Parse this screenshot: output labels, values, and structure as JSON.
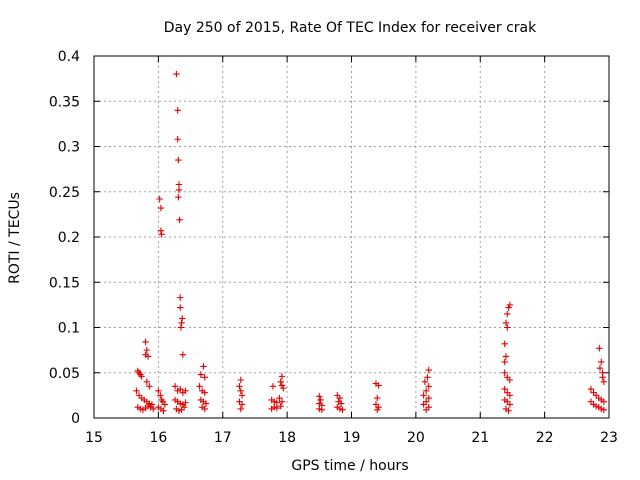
{
  "chart_data": {
    "type": "scatter",
    "title": "Day 250 of 2015, Rate Of TEC Index for receiver crak",
    "xlabel": "GPS time / hours",
    "ylabel": "ROTI / TECUs",
    "xlim": [
      15,
      23
    ],
    "ylim": [
      0,
      0.4
    ],
    "grid": true,
    "xticks": [
      "15",
      "16",
      "17",
      "18",
      "19",
      "20",
      "21",
      "22",
      "23"
    ],
    "yticks": [
      "0",
      "0.05",
      "0.1",
      "0.15",
      "0.2",
      "0.25",
      "0.3",
      "0.35",
      "0.4"
    ],
    "marker_color": "#e00000",
    "marker": "+",
    "series": [
      {
        "name": "ROTI",
        "points": [
          [
            15.68,
            0.052
          ],
          [
            15.7,
            0.05
          ],
          [
            15.72,
            0.048
          ],
          [
            15.74,
            0.046
          ],
          [
            15.66,
            0.03
          ],
          [
            15.7,
            0.025
          ],
          [
            15.74,
            0.022
          ],
          [
            15.78,
            0.02
          ],
          [
            15.82,
            0.018
          ],
          [
            15.86,
            0.016
          ],
          [
            15.9,
            0.015
          ],
          [
            15.68,
            0.012
          ],
          [
            15.72,
            0.01
          ],
          [
            15.76,
            0.009
          ],
          [
            15.8,
            0.011
          ],
          [
            15.84,
            0.013
          ],
          [
            15.88,
            0.012
          ],
          [
            15.92,
            0.01
          ],
          [
            15.8,
            0.084
          ],
          [
            15.82,
            0.075
          ],
          [
            15.8,
            0.07
          ],
          [
            15.84,
            0.068
          ],
          [
            15.82,
            0.04
          ],
          [
            15.86,
            0.035
          ],
          [
            16.02,
            0.242
          ],
          [
            16.04,
            0.232
          ],
          [
            16.04,
            0.207
          ],
          [
            16.05,
            0.203
          ],
          [
            16.0,
            0.03
          ],
          [
            16.03,
            0.025
          ],
          [
            16.05,
            0.02
          ],
          [
            16.07,
            0.018
          ],
          [
            16.0,
            0.012
          ],
          [
            16.04,
            0.01
          ],
          [
            16.08,
            0.008
          ],
          [
            16.1,
            0.015
          ],
          [
            16.28,
            0.38
          ],
          [
            16.3,
            0.34
          ],
          [
            16.3,
            0.308
          ],
          [
            16.31,
            0.285
          ],
          [
            16.32,
            0.258
          ],
          [
            16.32,
            0.252
          ],
          [
            16.31,
            0.244
          ],
          [
            16.33,
            0.219
          ],
          [
            16.34,
            0.133
          ],
          [
            16.34,
            0.122
          ],
          [
            16.37,
            0.11
          ],
          [
            16.36,
            0.105
          ],
          [
            16.35,
            0.1
          ],
          [
            16.38,
            0.07
          ],
          [
            16.26,
            0.035
          ],
          [
            16.3,
            0.03
          ],
          [
            16.34,
            0.032
          ],
          [
            16.38,
            0.028
          ],
          [
            16.42,
            0.03
          ],
          [
            16.26,
            0.02
          ],
          [
            16.3,
            0.018
          ],
          [
            16.34,
            0.016
          ],
          [
            16.38,
            0.015
          ],
          [
            16.42,
            0.017
          ],
          [
            16.28,
            0.01
          ],
          [
            16.32,
            0.008
          ],
          [
            16.36,
            0.009
          ],
          [
            16.4,
            0.012
          ],
          [
            16.7,
            0.057
          ],
          [
            16.66,
            0.048
          ],
          [
            16.72,
            0.045
          ],
          [
            16.64,
            0.035
          ],
          [
            16.68,
            0.03
          ],
          [
            16.72,
            0.028
          ],
          [
            16.66,
            0.02
          ],
          [
            16.7,
            0.018
          ],
          [
            16.74,
            0.016
          ],
          [
            16.68,
            0.012
          ],
          [
            16.72,
            0.01
          ],
          [
            17.28,
            0.042
          ],
          [
            17.26,
            0.035
          ],
          [
            17.28,
            0.03
          ],
          [
            17.3,
            0.025
          ],
          [
            17.26,
            0.018
          ],
          [
            17.3,
            0.015
          ],
          [
            17.28,
            0.01
          ],
          [
            17.78,
            0.035
          ],
          [
            17.76,
            0.02
          ],
          [
            17.8,
            0.018
          ],
          [
            17.84,
            0.017
          ],
          [
            17.8,
            0.012
          ],
          [
            17.76,
            0.01
          ],
          [
            17.84,
            0.011
          ],
          [
            17.92,
            0.046
          ],
          [
            17.9,
            0.04
          ],
          [
            17.92,
            0.036
          ],
          [
            17.94,
            0.033
          ],
          [
            17.88,
            0.022
          ],
          [
            17.92,
            0.018
          ],
          [
            17.9,
            0.013
          ],
          [
            18.5,
            0.024
          ],
          [
            18.52,
            0.02
          ],
          [
            18.5,
            0.016
          ],
          [
            18.54,
            0.014
          ],
          [
            18.5,
            0.01
          ],
          [
            18.54,
            0.009
          ],
          [
            18.78,
            0.025
          ],
          [
            18.82,
            0.022
          ],
          [
            18.8,
            0.018
          ],
          [
            18.84,
            0.016
          ],
          [
            18.78,
            0.012
          ],
          [
            18.82,
            0.01
          ],
          [
            18.86,
            0.009
          ],
          [
            19.38,
            0.038
          ],
          [
            19.42,
            0.036
          ],
          [
            19.4,
            0.022
          ],
          [
            19.38,
            0.015
          ],
          [
            19.42,
            0.012
          ],
          [
            19.4,
            0.009
          ],
          [
            20.2,
            0.053
          ],
          [
            20.18,
            0.045
          ],
          [
            20.14,
            0.04
          ],
          [
            20.2,
            0.035
          ],
          [
            20.16,
            0.03
          ],
          [
            20.12,
            0.025
          ],
          [
            20.2,
            0.022
          ],
          [
            20.16,
            0.018
          ],
          [
            20.12,
            0.015
          ],
          [
            20.2,
            0.012
          ],
          [
            20.16,
            0.009
          ],
          [
            21.46,
            0.125
          ],
          [
            21.44,
            0.122
          ],
          [
            21.42,
            0.115
          ],
          [
            21.4,
            0.105
          ],
          [
            21.42,
            0.1
          ],
          [
            21.38,
            0.082
          ],
          [
            21.4,
            0.068
          ],
          [
            21.38,
            0.062
          ],
          [
            21.38,
            0.05
          ],
          [
            21.42,
            0.045
          ],
          [
            21.46,
            0.042
          ],
          [
            21.38,
            0.032
          ],
          [
            21.42,
            0.028
          ],
          [
            21.46,
            0.025
          ],
          [
            21.38,
            0.02
          ],
          [
            21.42,
            0.018
          ],
          [
            21.46,
            0.015
          ],
          [
            21.4,
            0.01
          ],
          [
            21.44,
            0.008
          ],
          [
            22.85,
            0.077
          ],
          [
            22.88,
            0.062
          ],
          [
            22.86,
            0.055
          ],
          [
            22.9,
            0.05
          ],
          [
            22.9,
            0.045
          ],
          [
            22.92,
            0.04
          ],
          [
            22.72,
            0.032
          ],
          [
            22.76,
            0.028
          ],
          [
            22.8,
            0.025
          ],
          [
            22.84,
            0.022
          ],
          [
            22.88,
            0.02
          ],
          [
            22.92,
            0.018
          ],
          [
            22.72,
            0.018
          ],
          [
            22.76,
            0.015
          ],
          [
            22.8,
            0.013
          ],
          [
            22.84,
            0.012
          ],
          [
            22.88,
            0.01
          ],
          [
            22.92,
            0.009
          ]
        ]
      }
    ]
  }
}
